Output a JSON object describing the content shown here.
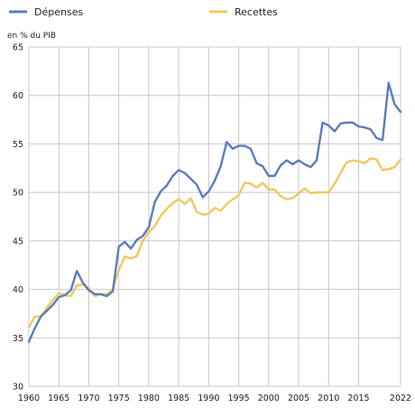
{
  "chart_data": {
    "type": "line",
    "ylabel": "en % du PIB",
    "ylim": [
      30,
      65
    ],
    "xlim": [
      1960,
      2022
    ],
    "yticks": [
      30,
      35,
      40,
      45,
      50,
      55,
      60,
      65
    ],
    "xticks": [
      1960,
      1965,
      1970,
      1975,
      1980,
      1985,
      1990,
      1995,
      2000,
      2005,
      2010,
      2015,
      2022
    ],
    "grid": true,
    "legend_position": "top",
    "x": [
      1960,
      1961,
      1962,
      1963,
      1964,
      1965,
      1966,
      1967,
      1968,
      1969,
      1970,
      1971,
      1972,
      1973,
      1974,
      1975,
      1976,
      1977,
      1978,
      1979,
      1980,
      1981,
      1982,
      1983,
      1984,
      1985,
      1986,
      1987,
      1988,
      1989,
      1990,
      1991,
      1992,
      1993,
      1994,
      1995,
      1996,
      1997,
      1998,
      1999,
      2000,
      2001,
      2002,
      2003,
      2004,
      2005,
      2006,
      2007,
      2008,
      2009,
      2010,
      2011,
      2012,
      2013,
      2014,
      2015,
      2016,
      2017,
      2018,
      2019,
      2020,
      2021,
      2022
    ],
    "series": [
      {
        "name": "Dépenses",
        "color": "#5a7dbd",
        "values": [
          34.6,
          36.0,
          37.2,
          37.8,
          38.4,
          39.2,
          39.4,
          39.9,
          41.9,
          40.7,
          39.9,
          39.5,
          39.5,
          39.3,
          39.8,
          44.4,
          44.9,
          44.2,
          45.1,
          45.5,
          46.4,
          49.0,
          50.1,
          50.7,
          51.7,
          52.3,
          52.0,
          51.4,
          50.8,
          49.5,
          50.1,
          51.2,
          52.7,
          55.2,
          54.5,
          54.8,
          54.8,
          54.5,
          53.0,
          52.7,
          51.7,
          51.7,
          52.8,
          53.3,
          52.9,
          53.3,
          52.9,
          52.6,
          53.3,
          57.2,
          56.9,
          56.3,
          57.1,
          57.2,
          57.2,
          56.8,
          56.7,
          56.5,
          55.6,
          55.4,
          61.3,
          59.1,
          58.3
        ]
      },
      {
        "name": "Recettes",
        "color": "#f0c860",
        "values": [
          36.1,
          37.2,
          37.2,
          38.1,
          38.9,
          39.6,
          39.4,
          39.3,
          40.4,
          40.5,
          40.1,
          39.3,
          39.5,
          39.5,
          40.0,
          42.0,
          43.4,
          43.2,
          43.4,
          45.0,
          45.9,
          46.5,
          47.6,
          48.3,
          48.9,
          49.3,
          48.8,
          49.4,
          48.0,
          47.7,
          47.8,
          48.4,
          48.1,
          48.8,
          49.3,
          49.7,
          51.0,
          50.9,
          50.5,
          51.0,
          50.3,
          50.3,
          49.6,
          49.3,
          49.4,
          49.9,
          50.4,
          49.9,
          50.0,
          50.0,
          50.0,
          50.9,
          52.0,
          53.1,
          53.3,
          53.2,
          53.0,
          53.5,
          53.4,
          52.3,
          52.4,
          52.6,
          53.4
        ]
      }
    ]
  }
}
